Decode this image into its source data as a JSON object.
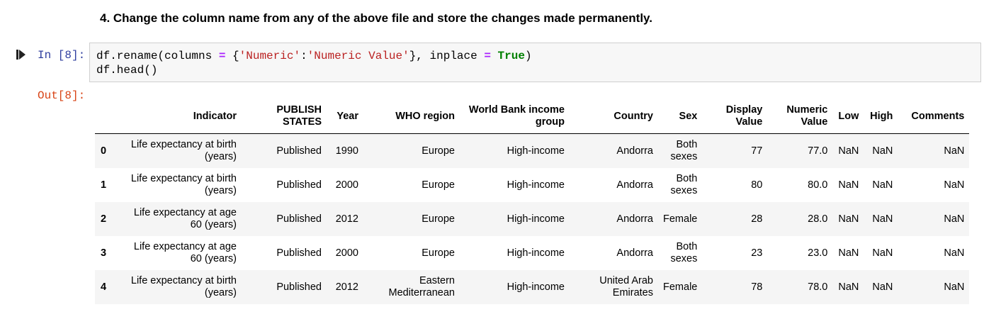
{
  "heading": "4. Change the column name from any of the above file and store the changes made permanently.",
  "cell": {
    "in_prompt": "In [8]:",
    "out_prompt": "Out[8]:",
    "code": {
      "l1_a": "df.rename(columns ",
      "l1_eq": "=",
      "l1_b": " {",
      "l1_s1": "'Numeric'",
      "l1_colon": ":",
      "l1_s2": "'Numeric Value'",
      "l1_c": "}, inplace ",
      "l1_eq2": "=",
      "l1_sp": " ",
      "l1_true": "True",
      "l1_close": ")",
      "l2": "df.head()"
    }
  },
  "table": {
    "columns": [
      "Indicator",
      "PUBLISH STATES",
      "Year",
      "WHO region",
      "World Bank income group",
      "Country",
      "Sex",
      "Display Value",
      "Numeric Value",
      "Low",
      "High",
      "Comments"
    ],
    "rows": [
      {
        "index": "0",
        "cells": [
          "Life expectancy at birth (years)",
          "Published",
          "1990",
          "Europe",
          "High-income",
          "Andorra",
          "Both sexes",
          "77",
          "77.0",
          "NaN",
          "NaN",
          "NaN"
        ]
      },
      {
        "index": "1",
        "cells": [
          "Life expectancy at birth (years)",
          "Published",
          "2000",
          "Europe",
          "High-income",
          "Andorra",
          "Both sexes",
          "80",
          "80.0",
          "NaN",
          "NaN",
          "NaN"
        ]
      },
      {
        "index": "2",
        "cells": [
          "Life expectancy at age 60 (years)",
          "Published",
          "2012",
          "Europe",
          "High-income",
          "Andorra",
          "Female",
          "28",
          "28.0",
          "NaN",
          "NaN",
          "NaN"
        ]
      },
      {
        "index": "3",
        "cells": [
          "Life expectancy at age 60 (years)",
          "Published",
          "2000",
          "Europe",
          "High-income",
          "Andorra",
          "Both sexes",
          "23",
          "23.0",
          "NaN",
          "NaN",
          "NaN"
        ]
      },
      {
        "index": "4",
        "cells": [
          "Life expectancy at birth (years)",
          "Published",
          "2012",
          "Eastern Mediterranean",
          "High-income",
          "United Arab Emirates",
          "Female",
          "78",
          "78.0",
          "NaN",
          "NaN",
          "NaN"
        ]
      }
    ]
  },
  "colors": {
    "in_prompt": "#303f9f",
    "out_prompt": "#d84315",
    "string": "#ba2121",
    "keyword": "#008000",
    "operator": "#aa22ff",
    "stripe": "#f5f5f5"
  },
  "icons": {
    "run": "run-cell-icon"
  }
}
